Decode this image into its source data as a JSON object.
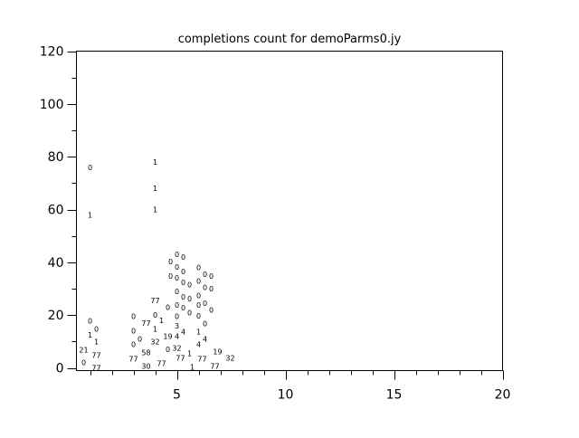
{
  "chart_data": {
    "type": "scatter",
    "title": "completions count for demoParms0.jy",
    "xlabel": "",
    "ylabel": "",
    "xlim": [
      0.375,
      20
    ],
    "ylim": [
      -1,
      120
    ],
    "x_ticks": [
      5,
      10,
      15,
      20
    ],
    "y_ticks": [
      0,
      20,
      40,
      60,
      80,
      100,
      120
    ],
    "grid": false,
    "marker": "text labels",
    "points": [
      {
        "x": 1,
        "y": 76,
        "label": "0"
      },
      {
        "x": 1,
        "y": 58,
        "label": "1"
      },
      {
        "x": 1,
        "y": 17.8,
        "label": "0"
      },
      {
        "x": 1,
        "y": 14.8,
        "label": "0"
      },
      {
        "x": 1,
        "y": 12.6,
        "label": "1"
      },
      {
        "x": 1,
        "y": 9.9,
        "label": "1"
      },
      {
        "x": 1,
        "y": 6.8,
        "label": "21"
      },
      {
        "x": 1,
        "y": 4.8,
        "label": "77"
      },
      {
        "x": 1,
        "y": 2,
        "label": "0"
      },
      {
        "x": 1,
        "y": 0,
        "label": "77"
      },
      {
        "x": 3,
        "y": 19.5,
        "label": "0"
      },
      {
        "x": 3,
        "y": 17,
        "label": "77"
      },
      {
        "x": 3,
        "y": 14,
        "label": "0"
      },
      {
        "x": 3,
        "y": 11,
        "label": "0"
      },
      {
        "x": 3,
        "y": 9,
        "label": "0"
      },
      {
        "x": 3,
        "y": 5.8,
        "label": "58"
      },
      {
        "x": 3,
        "y": 3.4,
        "label": "77"
      },
      {
        "x": 3,
        "y": 0.7,
        "label": "30"
      },
      {
        "x": 4,
        "y": 78,
        "label": "1"
      },
      {
        "x": 4,
        "y": 68,
        "label": "1"
      },
      {
        "x": 4,
        "y": 60,
        "label": "1"
      },
      {
        "x": 4,
        "y": 25.6,
        "label": "77"
      },
      {
        "x": 4,
        "y": 23,
        "label": "0"
      },
      {
        "x": 4,
        "y": 20,
        "label": "0"
      },
      {
        "x": 4,
        "y": 18,
        "label": "1"
      },
      {
        "x": 4,
        "y": 14.7,
        "label": "1"
      },
      {
        "x": 4,
        "y": 12,
        "label": "19"
      },
      {
        "x": 4,
        "y": 10,
        "label": "32"
      },
      {
        "x": 4,
        "y": 7,
        "label": "0"
      },
      {
        "x": 4,
        "y": 3.8,
        "label": "77"
      },
      {
        "x": 4,
        "y": 1.7,
        "label": "77"
      },
      {
        "x": 5,
        "y": 43,
        "label": "0"
      },
      {
        "x": 5,
        "y": 42,
        "label": "0"
      },
      {
        "x": 5,
        "y": 40.3,
        "label": "0"
      },
      {
        "x": 5,
        "y": 38.3,
        "label": "0"
      },
      {
        "x": 5,
        "y": 36.6,
        "label": "0"
      },
      {
        "x": 5,
        "y": 34.9,
        "label": "0"
      },
      {
        "x": 5,
        "y": 34.2,
        "label": "0"
      },
      {
        "x": 5,
        "y": 32.5,
        "label": "0"
      },
      {
        "x": 5,
        "y": 31.5,
        "label": "0"
      },
      {
        "x": 5,
        "y": 29,
        "label": "0"
      },
      {
        "x": 5,
        "y": 27,
        "label": "0"
      },
      {
        "x": 5,
        "y": 26.3,
        "label": "0"
      },
      {
        "x": 5,
        "y": 23.9,
        "label": "0"
      },
      {
        "x": 5,
        "y": 22.9,
        "label": "0"
      },
      {
        "x": 5,
        "y": 20.9,
        "label": "0"
      },
      {
        "x": 5,
        "y": 19.5,
        "label": "0"
      },
      {
        "x": 5,
        "y": 16,
        "label": "3"
      },
      {
        "x": 5,
        "y": 13.7,
        "label": "4"
      },
      {
        "x": 5,
        "y": 12,
        "label": "4"
      },
      {
        "x": 5,
        "y": 7.5,
        "label": "32"
      },
      {
        "x": 5,
        "y": 5.5,
        "label": "1"
      },
      {
        "x": 5,
        "y": 3.4,
        "label": "77"
      },
      {
        "x": 5,
        "y": 0.7,
        "label": "77"
      },
      {
        "x": 6,
        "y": 38,
        "label": "0"
      },
      {
        "x": 6,
        "y": 35.5,
        "label": "0"
      },
      {
        "x": 6,
        "y": 34.8,
        "label": "0"
      },
      {
        "x": 6,
        "y": 33,
        "label": "0"
      },
      {
        "x": 6,
        "y": 30.6,
        "label": "0"
      },
      {
        "x": 6,
        "y": 30,
        "label": "0"
      },
      {
        "x": 6,
        "y": 27.4,
        "label": "0"
      },
      {
        "x": 6,
        "y": 24.6,
        "label": "0"
      },
      {
        "x": 6,
        "y": 23.9,
        "label": "0"
      },
      {
        "x": 6,
        "y": 22,
        "label": "0"
      },
      {
        "x": 6,
        "y": 19.8,
        "label": "0"
      },
      {
        "x": 6,
        "y": 16.8,
        "label": "0"
      },
      {
        "x": 6,
        "y": 13.7,
        "label": "1"
      },
      {
        "x": 6,
        "y": 11,
        "label": "4"
      },
      {
        "x": 6,
        "y": 9,
        "label": "4"
      },
      {
        "x": 6,
        "y": 6.2,
        "label": "19"
      },
      {
        "x": 6,
        "y": 3.8,
        "label": "32"
      },
      {
        "x": 6,
        "y": 0.3,
        "label": "1"
      }
    ]
  }
}
